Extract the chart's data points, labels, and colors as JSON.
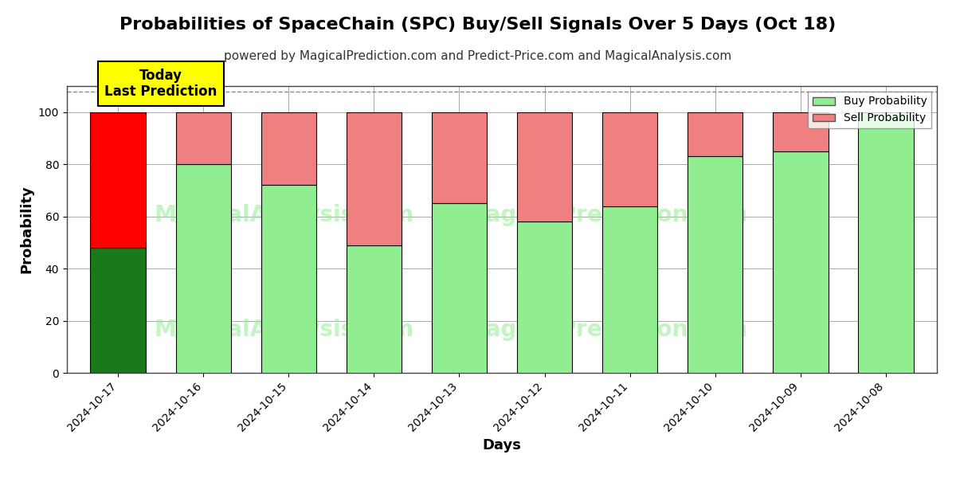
{
  "title": "Probabilities of SpaceChain (SPC) Buy/Sell Signals Over 5 Days (Oct 18)",
  "subtitle": "powered by MagicalPrediction.com and Predict-Price.com and MagicalAnalysis.com",
  "xlabel": "Days",
  "ylabel": "Probability",
  "dates": [
    "2024-10-17",
    "2024-10-16",
    "2024-10-15",
    "2024-10-14",
    "2024-10-13",
    "2024-10-12",
    "2024-10-11",
    "2024-10-10",
    "2024-10-09",
    "2024-10-08"
  ],
  "buy_values": [
    48,
    80,
    72,
    49,
    65,
    58,
    64,
    83,
    85,
    100
  ],
  "sell_values": [
    52,
    20,
    28,
    51,
    35,
    42,
    36,
    17,
    15,
    0
  ],
  "today_buy_color": "#1a7a1a",
  "today_sell_color": "#ff0000",
  "buy_color": "#90ee90",
  "sell_color": "#f08080",
  "bar_edgecolor": "#000000",
  "ylim": [
    0,
    110
  ],
  "yticks": [
    0,
    20,
    40,
    60,
    80,
    100
  ],
  "dashed_line_y": 108,
  "annotation_text": "Today\nLast Prediction",
  "annotation_facecolor": "#ffff00",
  "annotation_edgecolor": "#000000",
  "legend_buy_label": "Buy Probability",
  "legend_sell_label": "Sell Probability",
  "watermark_color": "#90ee90",
  "watermark_alpha": 0.55,
  "background_color": "#ffffff",
  "grid_color": "#aaaaaa",
  "title_fontsize": 16,
  "subtitle_fontsize": 11,
  "axis_label_fontsize": 13,
  "tick_fontsize": 10
}
